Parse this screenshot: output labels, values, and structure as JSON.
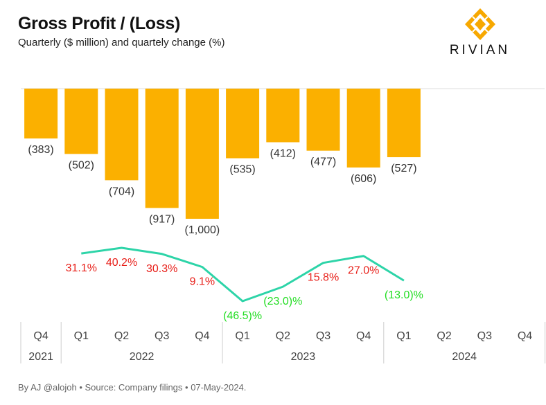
{
  "header": {
    "title": "Gross Profit / (Loss)",
    "subtitle": "Quarterly ($ million) and quartely change (%)"
  },
  "logo": {
    "text": "RIVIAN",
    "icon": "rivian-logo-icon",
    "color": "#F7A800"
  },
  "footer": {
    "text": "By AJ @alojoh • Source: Company filings • 07-May-2024."
  },
  "colors": {
    "bar": "#FBB000",
    "line": "#2DD4A8",
    "positive": "#E8201A",
    "negative": "#22DD22",
    "gridline": "#DDDDDD",
    "axis": "#CCCCCC"
  },
  "chart_data": {
    "type": "bar",
    "categories": [
      "Q4",
      "Q1",
      "Q2",
      "Q3",
      "Q4",
      "Q1",
      "Q2",
      "Q3",
      "Q4",
      "Q1",
      "Q2",
      "Q3",
      "Q4"
    ],
    "years": [
      {
        "label": "2021",
        "span": 1
      },
      {
        "label": "2022",
        "span": 4
      },
      {
        "label": "2023",
        "span": 4
      },
      {
        "label": "2024",
        "span": 4
      }
    ],
    "series": [
      {
        "type": "bar",
        "values": [
          -383,
          -502,
          -704,
          -917,
          -1000,
          -535,
          -412,
          -477,
          -606,
          -527,
          null,
          null,
          null
        ],
        "labels": [
          "(383)",
          "(502)",
          "(704)",
          "(917)",
          "(1,000)",
          "(535)",
          "(412)",
          "(477)",
          "(606)",
          "(527)",
          "",
          "",
          ""
        ]
      },
      {
        "type": "line",
        "values": [
          null,
          31.1,
          40.2,
          30.3,
          9.1,
          -46.5,
          -23.0,
          15.8,
          27.0,
          -13.0,
          null,
          null,
          null
        ],
        "labels": [
          "",
          "31.1%",
          "40.2%",
          "30.3%",
          "9.1%",
          "(46.5)%",
          "(23.0)%",
          "15.8%",
          "27.0%",
          "(13.0)%",
          "",
          "",
          ""
        ]
      }
    ],
    "ylim_bar": [
      -1000,
      0
    ],
    "ylim_line": [
      -46.5,
      40.2
    ]
  }
}
